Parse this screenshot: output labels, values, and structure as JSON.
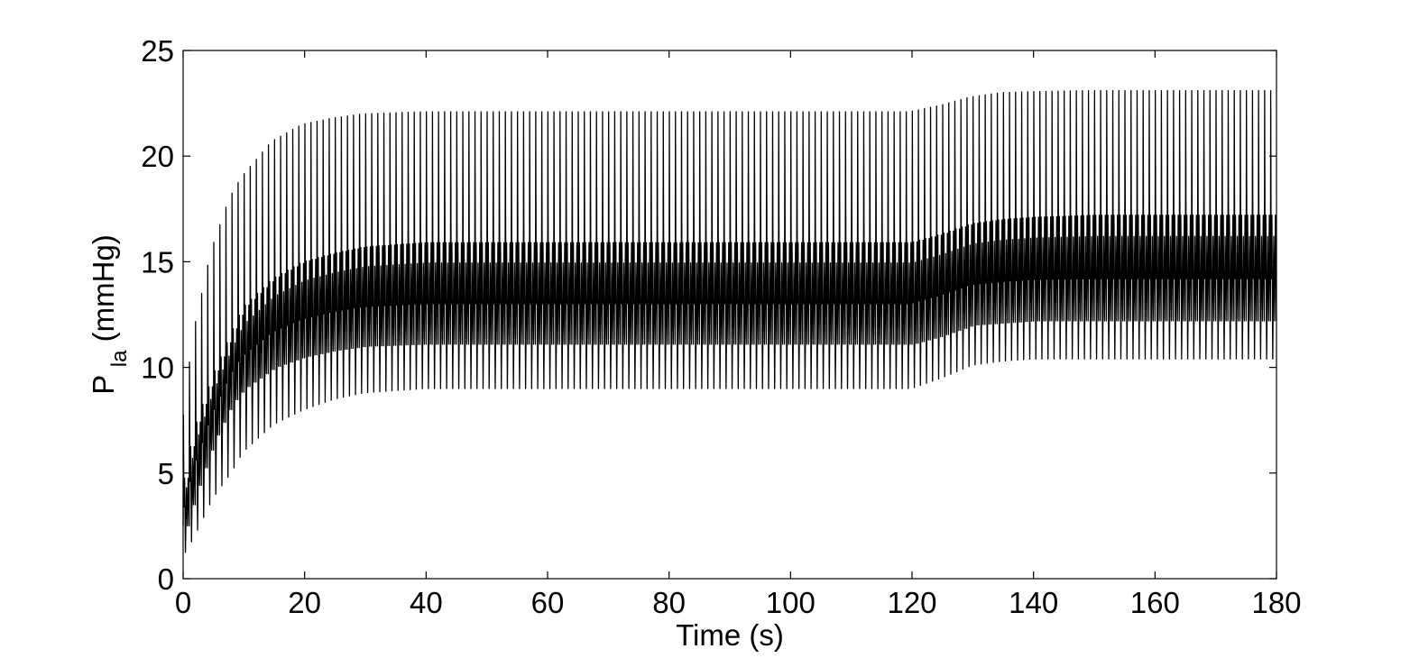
{
  "chart_data": {
    "type": "line",
    "title": "",
    "xlabel": "Time (s)",
    "ylabel": {
      "main": "P",
      "subscript": "la",
      "unit": "(mmHg)"
    },
    "xlim": [
      0,
      180
    ],
    "ylim": [
      0,
      25
    ],
    "xticks": [
      0,
      20,
      40,
      60,
      80,
      100,
      120,
      140,
      160,
      180
    ],
    "yticks": [
      0,
      5,
      10,
      15,
      20,
      25
    ],
    "xtick_labels": [
      "0",
      "20",
      "40",
      "60",
      "80",
      "100",
      "120",
      "140",
      "160",
      "180"
    ],
    "ytick_labels": [
      "0",
      "5",
      "10",
      "15",
      "20",
      "25"
    ],
    "grid": false,
    "legend": "none",
    "line_color": "#000000",
    "beat_period_s": 1.0,
    "series": [
      {
        "envelope": {
          "time_s": [
            0,
            2,
            5,
            8,
            10,
            15,
            20,
            25,
            30,
            40,
            60,
            80,
            100,
            120,
            125,
            130,
            135,
            140,
            150,
            160,
            180
          ],
          "max": [
            6.5,
            11.5,
            15.5,
            18.0,
            19.0,
            20.7,
            21.5,
            21.8,
            22.0,
            22.1,
            22.1,
            22.1,
            22.1,
            22.1,
            22.4,
            22.8,
            23.0,
            23.05,
            23.1,
            23.1,
            23.1
          ],
          "min": [
            1.0,
            2.0,
            3.8,
            5.0,
            6.0,
            7.3,
            8.0,
            8.5,
            8.8,
            9.0,
            9.0,
            9.0,
            9.0,
            9.0,
            9.5,
            10.1,
            10.3,
            10.4,
            10.4,
            10.4,
            10.4
          ],
          "band_high": [
            4.0,
            7.0,
            9.5,
            11.5,
            12.8,
            14.2,
            15.0,
            15.4,
            15.7,
            15.9,
            15.9,
            15.9,
            15.9,
            15.9,
            16.3,
            16.8,
            17.0,
            17.1,
            17.2,
            17.2,
            17.2
          ],
          "band_low": [
            2.0,
            4.0,
            6.5,
            8.3,
            9.0,
            10.0,
            10.5,
            10.8,
            11.0,
            11.1,
            11.1,
            11.1,
            11.1,
            11.1,
            11.5,
            12.0,
            12.1,
            12.2,
            12.2,
            12.2,
            12.2
          ]
        }
      }
    ]
  }
}
